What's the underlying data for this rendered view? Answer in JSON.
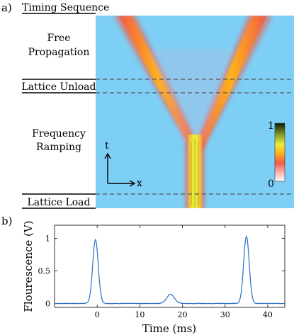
{
  "panel_a": {
    "panel_label": "a)",
    "title": "Timing Sequence",
    "stage_labels": {
      "free_line1": "Free",
      "free_line2": "Propagation",
      "unload": "Lattice Unload",
      "ramp_line1": "Frequency",
      "ramp_line2": "Ramping",
      "load": "Lattice Load"
    },
    "axes": {
      "t": "t",
      "x": "x"
    },
    "colorbar": {
      "max_label": "1",
      "min_label": "0"
    },
    "colors": {
      "background": "#7ecff5",
      "arm_outer": "#f05a4a",
      "arm_core": "#ffb21a",
      "trap": "#dbe63a"
    }
  },
  "chart_data": {
    "type": "line",
    "panel_label": "b)",
    "xlabel": "Time (ms)",
    "ylabel": "Flourescence (V)",
    "xlim": [
      -10,
      44
    ],
    "ylim": [
      -0.06,
      1.2
    ],
    "xticks": [
      "0",
      "10",
      "20",
      "30",
      "40"
    ],
    "yticks": [
      "0",
      "0.5",
      "1"
    ],
    "grid": false,
    "series": [
      {
        "color": "#2b6fc8",
        "peaks": [
          {
            "t": -0.4,
            "height": 0.98,
            "width": 0.65
          },
          {
            "t": 17.2,
            "height": 0.14,
            "width": 0.9
          },
          {
            "t": 35.0,
            "height": 1.03,
            "width": 0.65
          }
        ],
        "baseline": 0.0
      }
    ]
  }
}
